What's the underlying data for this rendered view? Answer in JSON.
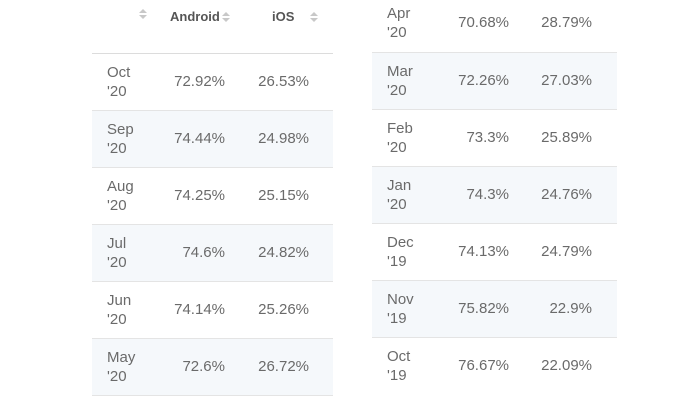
{
  "header": {
    "android_label": "Android",
    "ios_label": "iOS"
  },
  "left_rows": [
    {
      "month": "Oct",
      "year": "'20",
      "android": "72.92%",
      "ios": "26.53%"
    },
    {
      "month": "Sep",
      "year": "'20",
      "android": "74.44%",
      "ios": "24.98%"
    },
    {
      "month": "Aug",
      "year": "'20",
      "android": "74.25%",
      "ios": "25.15%"
    },
    {
      "month": "Jul",
      "year": "'20",
      "android": "74.6%",
      "ios": "24.82%"
    },
    {
      "month": "Jun",
      "year": "'20",
      "android": "74.14%",
      "ios": "25.26%"
    },
    {
      "month": "May",
      "year": "'20",
      "android": "72.6%",
      "ios": "26.72%"
    }
  ],
  "right_rows": [
    {
      "month": "Apr",
      "year": "'20",
      "android": "70.68%",
      "ios": "28.79%"
    },
    {
      "month": "Mar",
      "year": "'20",
      "android": "72.26%",
      "ios": "27.03%"
    },
    {
      "month": "Feb",
      "year": "'20",
      "android": "73.3%",
      "ios": "25.89%"
    },
    {
      "month": "Jan",
      "year": "'20",
      "android": "74.3%",
      "ios": "24.76%"
    },
    {
      "month": "Dec",
      "year": "'19",
      "android": "74.13%",
      "ios": "24.79%"
    },
    {
      "month": "Nov",
      "year": "'19",
      "android": "75.82%",
      "ios": "22.9%"
    },
    {
      "month": "Oct",
      "year": "'19",
      "android": "76.67%",
      "ios": "22.09%"
    }
  ],
  "icons": {
    "sort": "sort-icon"
  },
  "colors": {
    "alt_row_background": "#f5f8fb",
    "text": "#6a6a6a",
    "sort_icon": "#c8c8c8"
  }
}
